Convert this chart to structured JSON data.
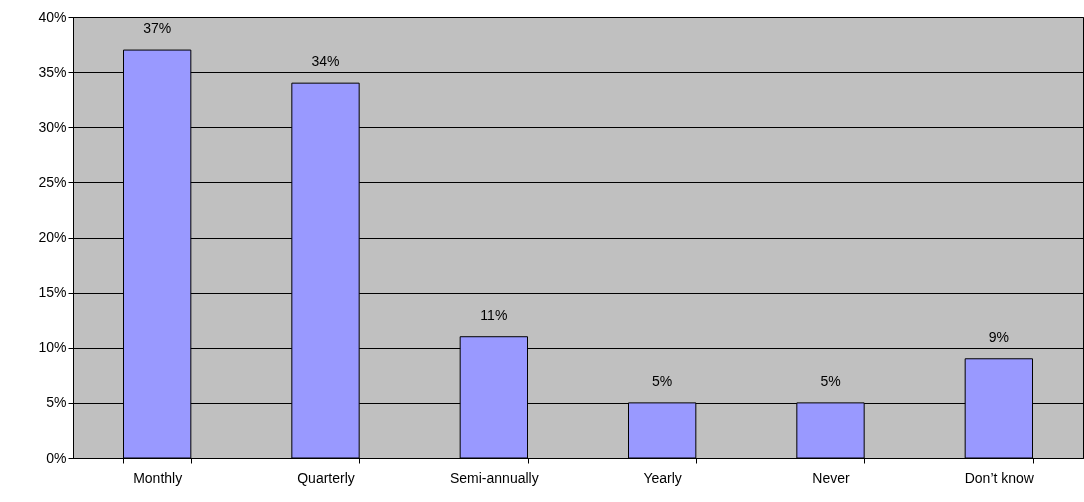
{
  "chart_data": {
    "type": "bar",
    "categories": [
      "Monthly",
      "Quarterly",
      "Semi-annually",
      "Yearly",
      "Never",
      "Don’t know"
    ],
    "values": [
      37,
      34,
      11,
      5,
      5,
      9
    ],
    "value_labels": [
      "37%",
      "34%",
      "11%",
      "5%",
      "5%",
      "9%"
    ],
    "color": "#9999ff",
    "ylim": [
      0,
      40
    ],
    "yticks": [
      {
        "value": 0,
        "label": "0%"
      },
      {
        "value": 5,
        "label": "5%"
      },
      {
        "value": 10,
        "label": "10%"
      },
      {
        "value": 15,
        "label": "15%"
      },
      {
        "value": 20,
        "label": "20%"
      },
      {
        "value": 25,
        "label": "25%"
      },
      {
        "value": 30,
        "label": "30%"
      },
      {
        "value": 35,
        "label": "35%"
      },
      {
        "value": 40,
        "label": "40%"
      }
    ],
    "grid": "y"
  }
}
